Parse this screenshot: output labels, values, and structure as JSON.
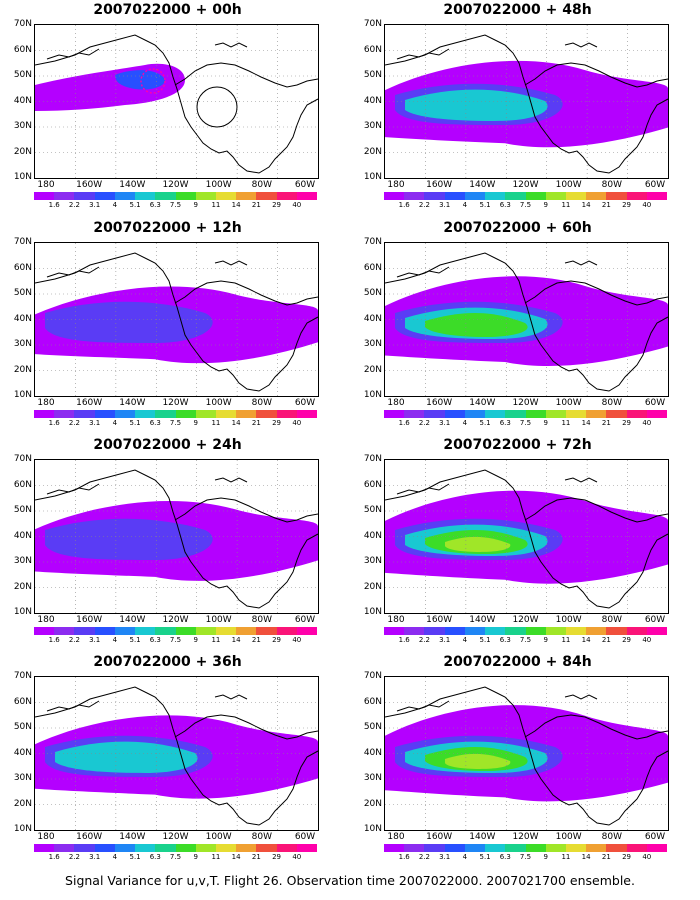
{
  "panels": [
    {
      "title": "2007022000 + 00h",
      "level": 0
    },
    {
      "title": "2007022000 + 48h",
      "level": 4
    },
    {
      "title": "2007022000 + 12h",
      "level": 1
    },
    {
      "title": "2007022000 + 60h",
      "level": 5
    },
    {
      "title": "2007022000 + 24h",
      "level": 2
    },
    {
      "title": "2007022000 + 72h",
      "level": 6
    },
    {
      "title": "2007022000 + 36h",
      "level": 3
    },
    {
      "title": "2007022000 + 84h",
      "level": 7
    }
  ],
  "y_labels": [
    "70N",
    "60N",
    "50N",
    "40N",
    "30N",
    "20N",
    "10N"
  ],
  "x_labels": [
    "180",
    "160W",
    "140W",
    "120W",
    "100W",
    "80W",
    "60W"
  ],
  "colorbar": {
    "labels": [
      "1.6",
      "2.2",
      "3.1",
      "4",
      "5.1",
      "6.3",
      "7.5",
      "9",
      "11",
      "14",
      "21",
      "29",
      "40"
    ],
    "colors": [
      "#b400ff",
      "#8c2cf0",
      "#5a3cf5",
      "#2850ff",
      "#1f86f5",
      "#19c8d2",
      "#19d28c",
      "#3cdc28",
      "#a0e628",
      "#e6dc32",
      "#f0a032",
      "#f0503c",
      "#fa1478",
      "#ff00aa"
    ]
  },
  "footer": "Signal Variance for u,v,T. Flight 26. Observation time 2007022000. 2007021700 ensemble."
}
